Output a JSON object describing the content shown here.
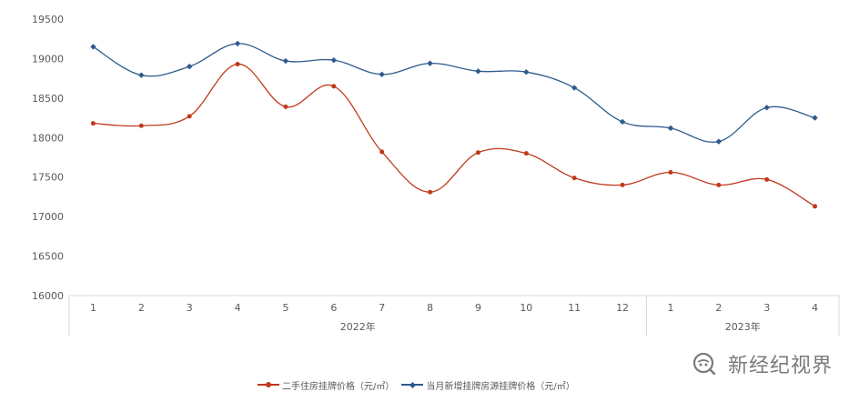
{
  "chart_data": {
    "type": "line",
    "categories": [
      "1",
      "2",
      "3",
      "4",
      "5",
      "6",
      "7",
      "8",
      "9",
      "10",
      "11",
      "12",
      "1",
      "2",
      "3",
      "4"
    ],
    "groups": [
      {
        "label": "2022年",
        "count": 12
      },
      {
        "label": "2023年",
        "count": 4
      }
    ],
    "ylim": [
      16000,
      19500
    ],
    "yticks": [
      16000,
      16500,
      17000,
      17500,
      18000,
      18500,
      19000,
      19500
    ],
    "grid": false,
    "legend_position": "bottom",
    "series": [
      {
        "name": "二手住房挂牌价格（元/㎡）",
        "color": "#c0391b",
        "marker": "circle",
        "values": [
          18180,
          18150,
          18270,
          18930,
          18390,
          18650,
          17820,
          17310,
          17810,
          17800,
          17490,
          17400,
          17560,
          17400,
          17470,
          17130
        ]
      },
      {
        "name": "当月新增挂牌房源挂牌价格（元/㎡）",
        "color": "#2e5a8c",
        "marker": "diamond",
        "values": [
          19150,
          18790,
          18900,
          19190,
          18970,
          18980,
          18800,
          18940,
          18840,
          18830,
          18630,
          18200,
          18120,
          17950,
          18380,
          18250
        ]
      }
    ]
  },
  "watermark": {
    "text": "新经纪视界",
    "icon": "wechat-search-icon",
    "color": "#7a7a7a"
  }
}
